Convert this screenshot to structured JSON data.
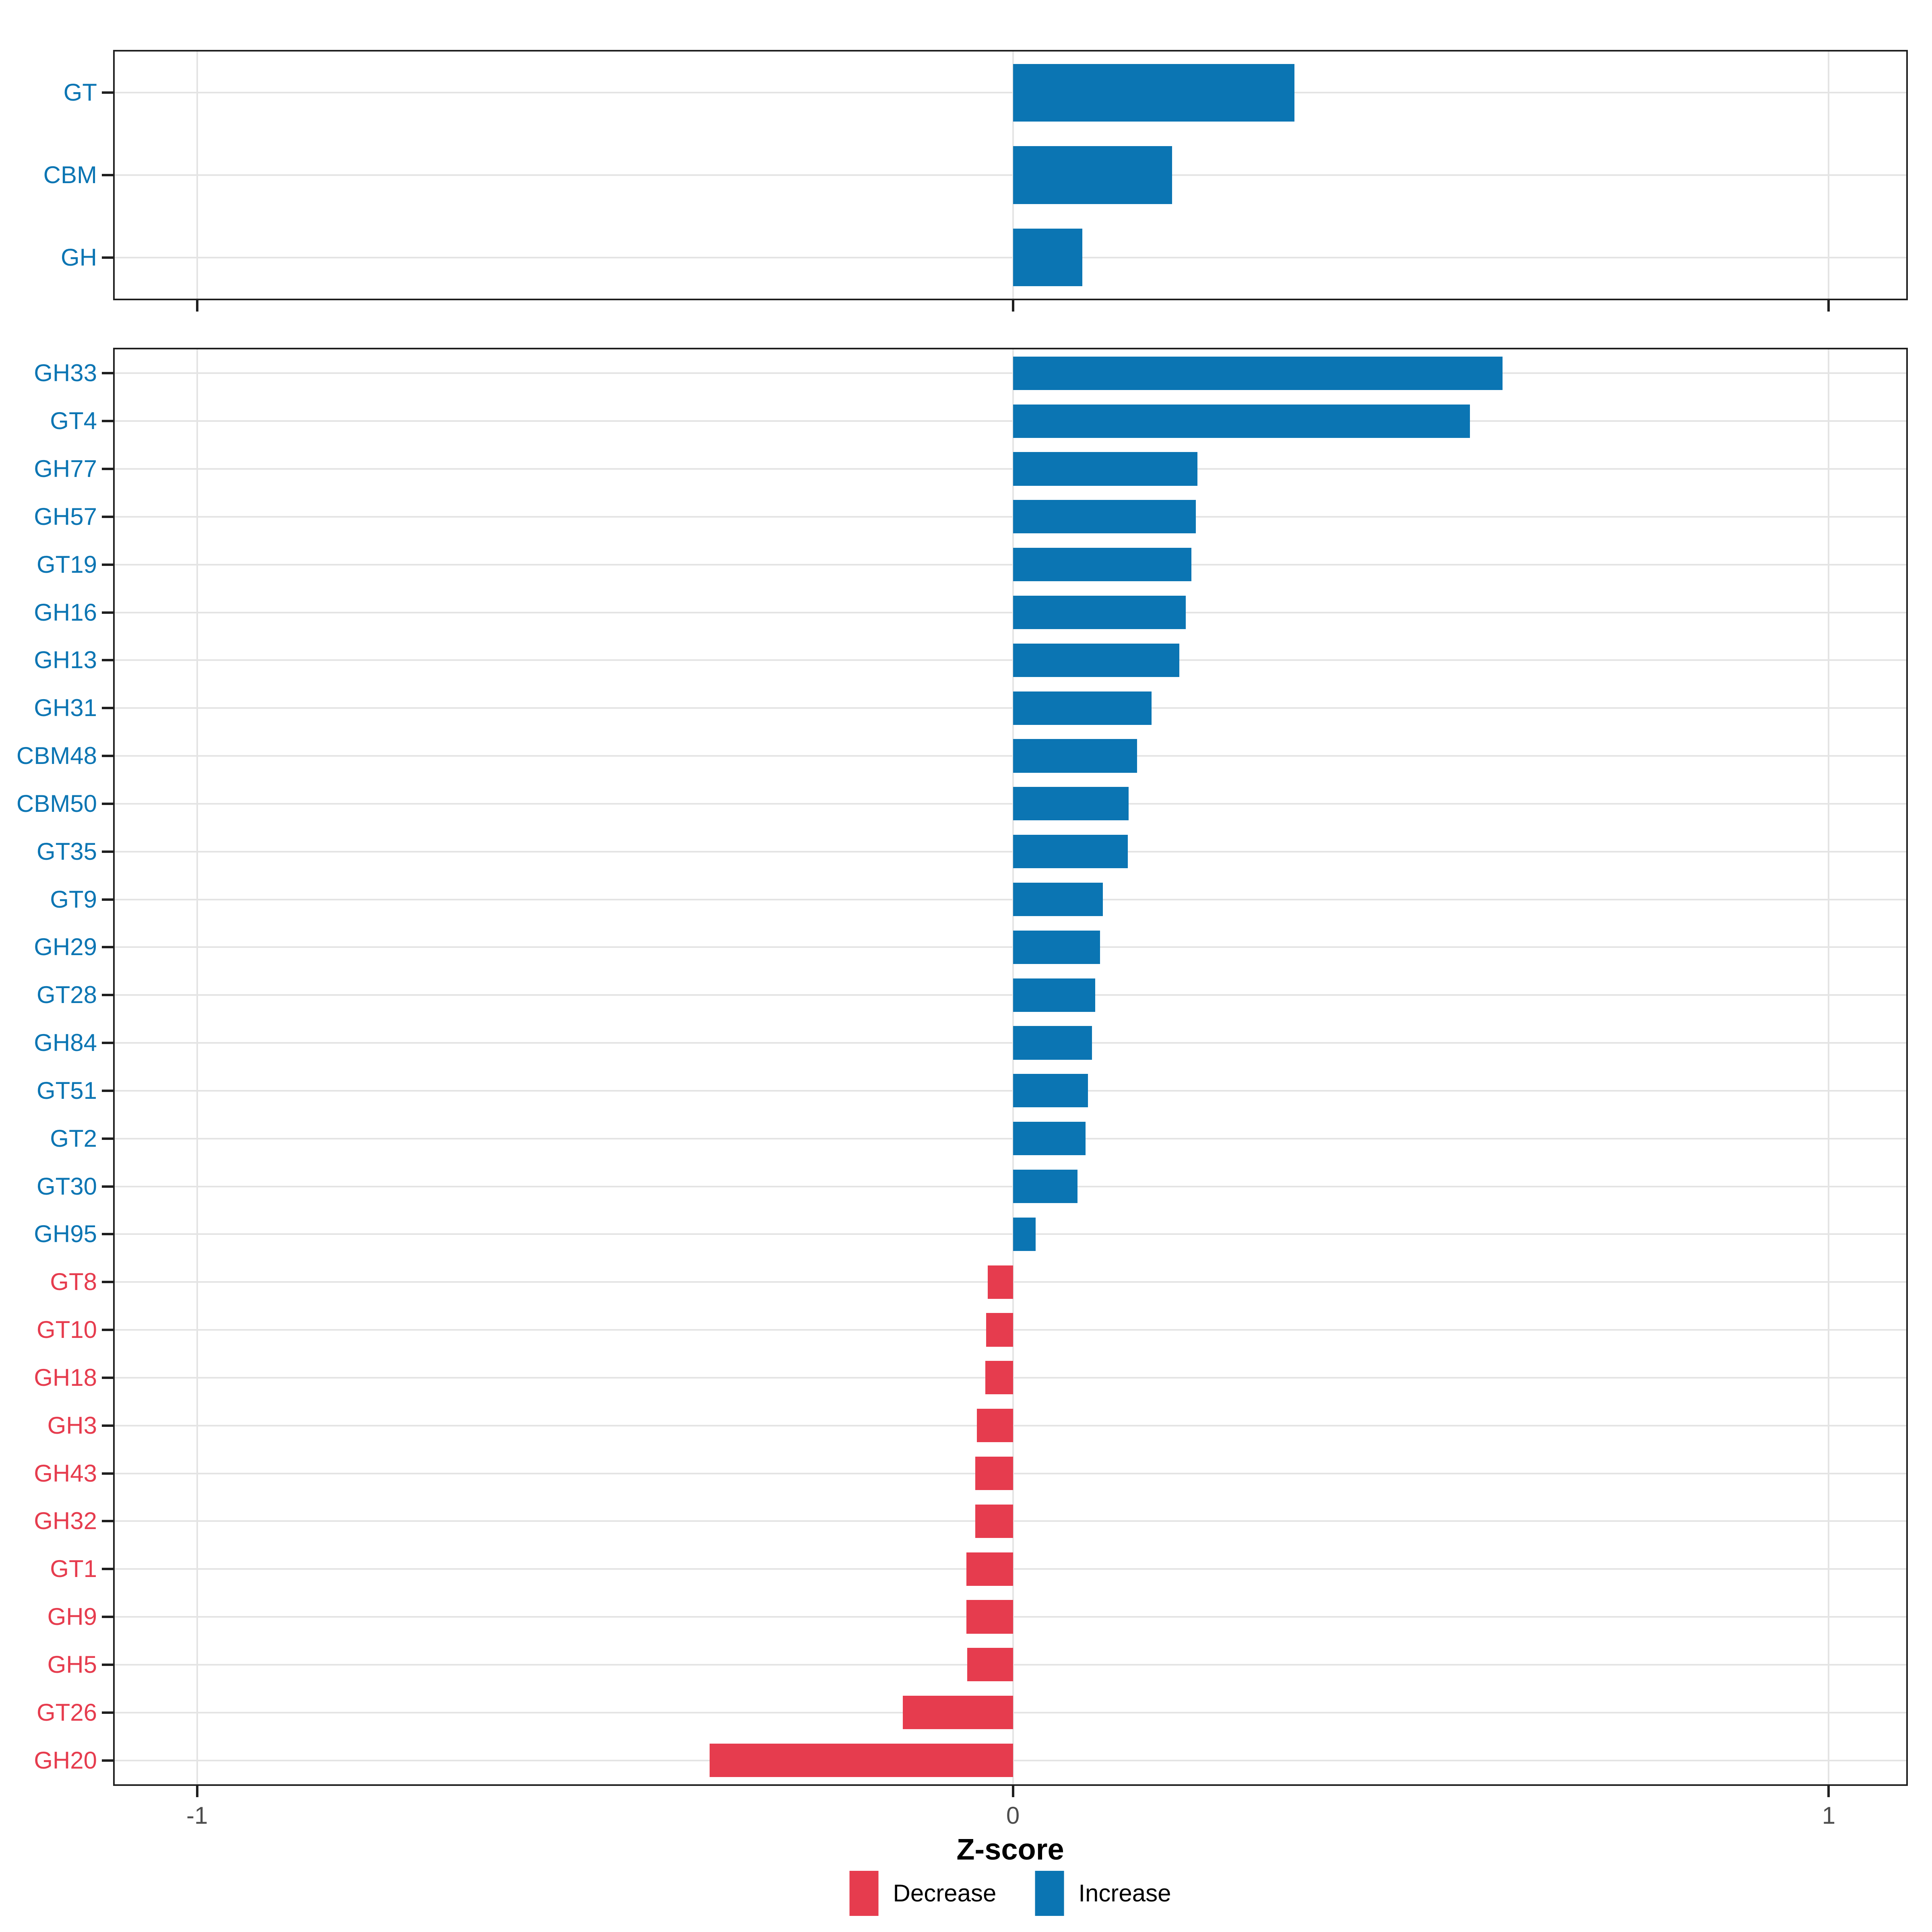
{
  "figure": {
    "axis_title": "Z-score",
    "xlim": [
      -1.101,
      1.095
    ],
    "x_ticks": [
      {
        "value": -1,
        "label": "-1"
      },
      {
        "value": 0,
        "label": "0"
      },
      {
        "value": 1,
        "label": "1"
      }
    ]
  },
  "colors": {
    "increase": "#0B75B3",
    "decrease": "#E63C4E",
    "grid": "#E4E4E4",
    "frame": "#1F1F1F",
    "axis_text": "#4D4D4D"
  },
  "legend": {
    "items": [
      {
        "label": "Decrease",
        "type": "decrease"
      },
      {
        "label": "Increase",
        "type": "increase"
      }
    ]
  },
  "chart_data": [
    {
      "type": "bar",
      "orientation": "horizontal",
      "panel": "cazyme-classes",
      "xlabel": "Z-score",
      "xlim": [
        -1.101,
        1.095
      ],
      "grid": true,
      "rows": [
        [
          "GT",
          0.345
        ],
        [
          "CBM",
          0.195
        ],
        [
          "GH",
          0.085
        ]
      ]
    },
    {
      "type": "bar",
      "orientation": "horizontal",
      "panel": "cazyme-families",
      "xlabel": "Z-score",
      "xlim": [
        -1.101,
        1.095
      ],
      "grid": true,
      "legend_position": "bottom",
      "rows": [
        [
          "GH33",
          0.6
        ],
        [
          "GT4",
          0.56
        ],
        [
          "GH77",
          0.226
        ],
        [
          "GH57",
          0.224
        ],
        [
          "GT19",
          0.219
        ],
        [
          "GH16",
          0.212
        ],
        [
          "GH13",
          0.204
        ],
        [
          "GH31",
          0.17
        ],
        [
          "CBM48",
          0.152
        ],
        [
          "CBM50",
          0.142
        ],
        [
          "GT35",
          0.141
        ],
        [
          "GT9",
          0.11
        ],
        [
          "GH29",
          0.107
        ],
        [
          "GT28",
          0.101
        ],
        [
          "GH84",
          0.097
        ],
        [
          "GT51",
          0.092
        ],
        [
          "GT2",
          0.089
        ],
        [
          "GT30",
          0.079
        ],
        [
          "GH95",
          0.028
        ],
        [
          "GT8",
          -0.031
        ],
        [
          "GT10",
          -0.033
        ],
        [
          "GH18",
          -0.034
        ],
        [
          "GH3",
          -0.044
        ],
        [
          "GH43",
          -0.046
        ],
        [
          "GH32",
          -0.046
        ],
        [
          "GT1",
          -0.057
        ],
        [
          "GH9",
          -0.057
        ],
        [
          "GH5",
          -0.056
        ],
        [
          "GT26",
          -0.135
        ],
        [
          "GH20",
          -0.372
        ]
      ]
    }
  ]
}
